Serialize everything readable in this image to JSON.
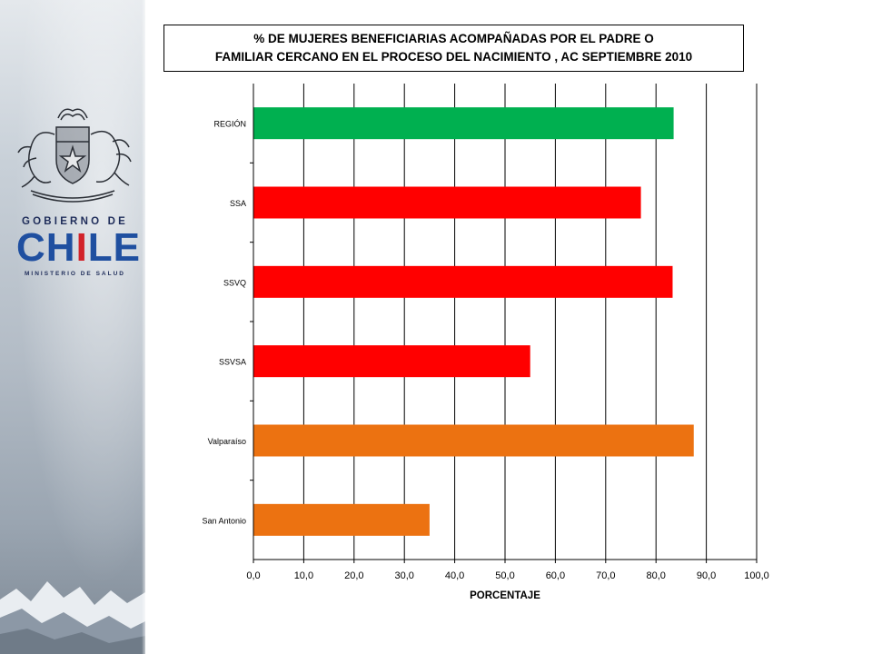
{
  "logo": {
    "gobierno": "GOBIERNO DE",
    "chile_left": "CH",
    "chile_i": "I",
    "chile_right": "LE",
    "ministerio": "MINISTERIO DE SALUD"
  },
  "colors": {
    "region": "#00b050",
    "servicio": "#ff0000",
    "comuna": "#ec7211",
    "logo_blue": "#1f4fa0",
    "logo_red": "#d2232a"
  },
  "chart_data": {
    "type": "bar",
    "orientation": "horizontal",
    "title_lines": [
      "% DE MUJERES BENEFICIARIAS ACOMPAÑADAS POR EL PADRE O",
      "FAMILIAR CERCANO EN EL PROCESO DEL NACIMIENTO  , AC SEPTIEMBRE 2010"
    ],
    "categories": [
      "REGIÓN",
      "SSA",
      "SSVQ",
      "SSVSA",
      "Valparaíso",
      "San Antonio"
    ],
    "values": [
      83.5,
      77.0,
      83.3,
      55.0,
      87.5,
      35.0
    ],
    "bar_colors": [
      "#00b050",
      "#ff0000",
      "#ff0000",
      "#ff0000",
      "#ec7211",
      "#ec7211"
    ],
    "xlabel": "PORCENTAJE",
    "xlim": [
      0,
      100
    ],
    "xticks": [
      0,
      10,
      20,
      30,
      40,
      50,
      60,
      70,
      80,
      90,
      100
    ],
    "xtick_labels": [
      "0,0",
      "10,0",
      "20,0",
      "30,0",
      "40,0",
      "50,0",
      "60,0",
      "70,0",
      "80,0",
      "90,0",
      "100,0"
    ],
    "grid": "vertical"
  }
}
